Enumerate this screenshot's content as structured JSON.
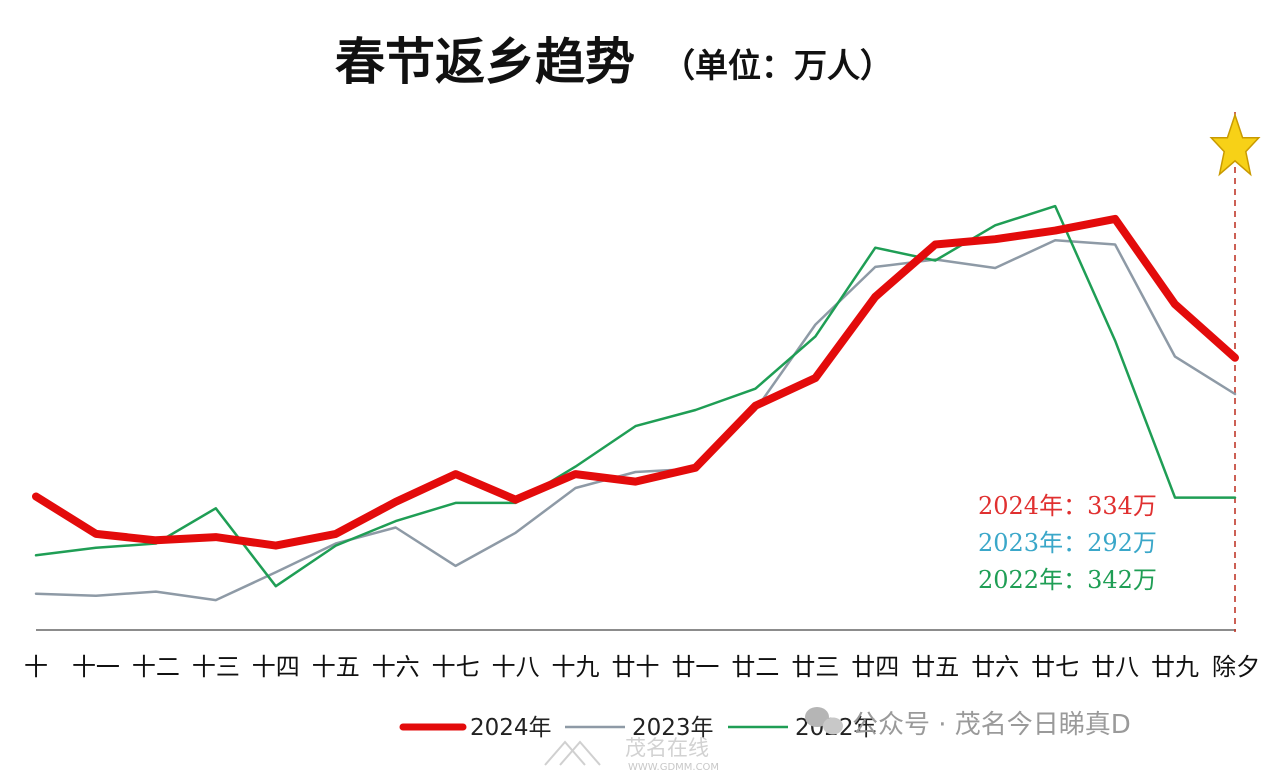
{
  "chart_data": {
    "type": "line",
    "title": "春节返乡趋势",
    "subtitle": "（单位：万人）",
    "categories": [
      "十",
      "十一",
      "十二",
      "十三",
      "十四",
      "十五",
      "十六",
      "十七",
      "十八",
      "十九",
      "廿十",
      "廿一",
      "廿二",
      "廿三",
      "廿四",
      "廿五",
      "廿六",
      "廿七",
      "廿八",
      "廿九",
      "除夕"
    ],
    "series": [
      {
        "name": "2024年",
        "color": "#e30b0b",
        "values": [
          325,
          290,
          284,
          287,
          279,
          290,
          320,
          346,
          322,
          346,
          339,
          352,
          410,
          436,
          512,
          561,
          566,
          574,
          585,
          505,
          455
        ]
      },
      {
        "name": "2023年",
        "color": "#8e9aa6",
        "values": [
          234,
          232,
          236,
          228,
          254,
          281,
          296,
          260,
          291,
          333,
          348,
          351,
          406,
          486,
          540,
          547,
          539,
          565,
          561,
          456,
          421
        ]
      },
      {
        "name": "2022年",
        "color": "#1f9e55",
        "values": [
          270,
          277,
          281,
          314,
          241,
          279,
          302,
          319,
          319,
          353,
          391,
          406,
          426,
          475,
          558,
          546,
          579,
          597,
          471,
          324,
          324
        ]
      }
    ],
    "annotations": [
      {
        "label": "2024年：334万",
        "color": "#e03030"
      },
      {
        "label": "2023年：292万",
        "color": "#3aa7c9"
      },
      {
        "label": "2022年：342万",
        "color": "#1f9e55"
      }
    ],
    "marker": "star",
    "ylim": [
      200,
      790
    ],
    "grid": false,
    "legend": "bottom"
  },
  "watermark": {
    "account": "公众号 · 茂名今日睇真D",
    "site": "茂名在线",
    "site_url": "WWW.GDMM.COM"
  }
}
